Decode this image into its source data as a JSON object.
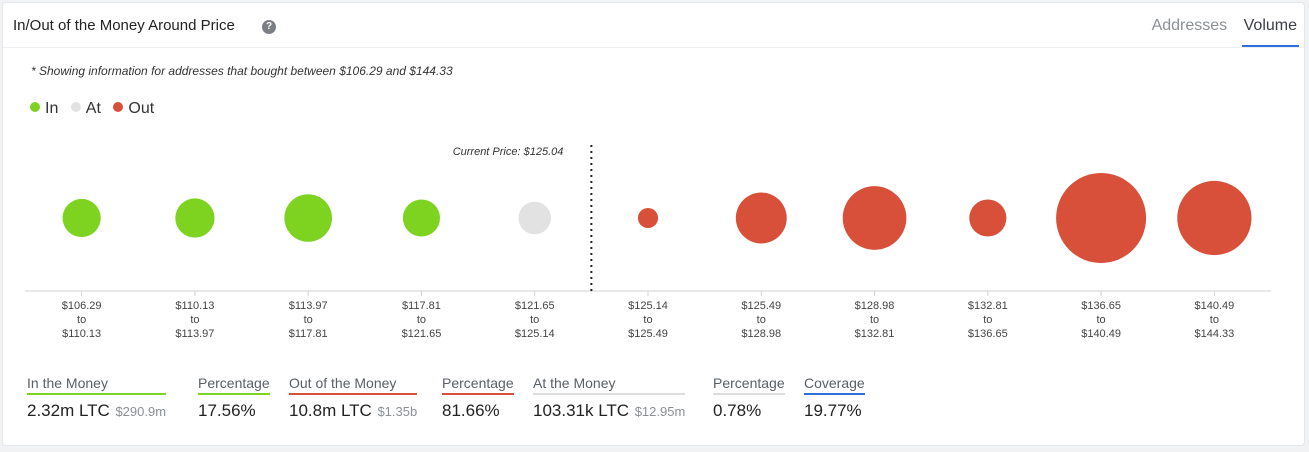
{
  "header": {
    "title": "In/Out of the Money Around Price",
    "help_icon": "question-circle-icon",
    "tabs": [
      {
        "label": "Addresses",
        "active": false
      },
      {
        "label": "Volume",
        "active": true
      }
    ]
  },
  "note": "* Showing information for addresses that bought between $106.29 and $144.33",
  "legend": [
    {
      "label": "In",
      "color": "#7ed321"
    },
    {
      "label": "At",
      "color": "#e2e2e2"
    },
    {
      "label": "Out",
      "color": "#d9503a"
    }
  ],
  "chart_data": {
    "type": "scatter",
    "current_price_label": "Current Price: $125.04",
    "bins": [
      {
        "from": "$106.29",
        "to": "$110.13",
        "status": "In",
        "relative_volume": 0.18
      },
      {
        "from": "$110.13",
        "to": "$113.97",
        "status": "In",
        "relative_volume": 0.19
      },
      {
        "from": "$113.97",
        "to": "$117.81",
        "status": "In",
        "relative_volume": 0.28
      },
      {
        "from": "$117.81",
        "to": "$121.65",
        "status": "In",
        "relative_volume": 0.17
      },
      {
        "from": "$121.65",
        "to": "$125.14",
        "status": "At",
        "relative_volume": 0.13
      },
      {
        "from": "$125.14",
        "to": "$125.49",
        "status": "Out",
        "relative_volume": 0.05
      },
      {
        "from": "$125.49",
        "to": "$128.98",
        "status": "Out",
        "relative_volume": 0.32
      },
      {
        "from": "$128.98",
        "to": "$132.81",
        "status": "Out",
        "relative_volume": 0.5
      },
      {
        "from": "$132.81",
        "to": "$136.65",
        "status": "Out",
        "relative_volume": 0.17
      },
      {
        "from": "$136.65",
        "to": "$140.49",
        "status": "Out",
        "relative_volume": 1.0
      },
      {
        "from": "$140.49",
        "to": "$144.33",
        "status": "Out",
        "relative_volume": 0.68
      }
    ],
    "tick_connector": "to"
  },
  "stats": [
    {
      "label": "In the Money",
      "value": "2.32m LTC",
      "sub": "$290.9m",
      "color": "#7ed321"
    },
    {
      "label": "Percentage",
      "value": "17.56%",
      "sub": "",
      "color": "#7ed321"
    },
    {
      "label": "Out of the Money",
      "value": "10.8m LTC",
      "sub": "$1.35b",
      "color": "#d9503a"
    },
    {
      "label": "Percentage",
      "value": "81.66%",
      "sub": "",
      "color": "#d9503a"
    },
    {
      "label": "At the Money",
      "value": "103.31k LTC",
      "sub": "$12.95m",
      "color": "#dddddd"
    },
    {
      "label": "Percentage",
      "value": "0.78%",
      "sub": "",
      "color": "#dddddd"
    },
    {
      "label": "Coverage",
      "value": "19.77%",
      "sub": "",
      "color": "#2f6fdb"
    }
  ]
}
